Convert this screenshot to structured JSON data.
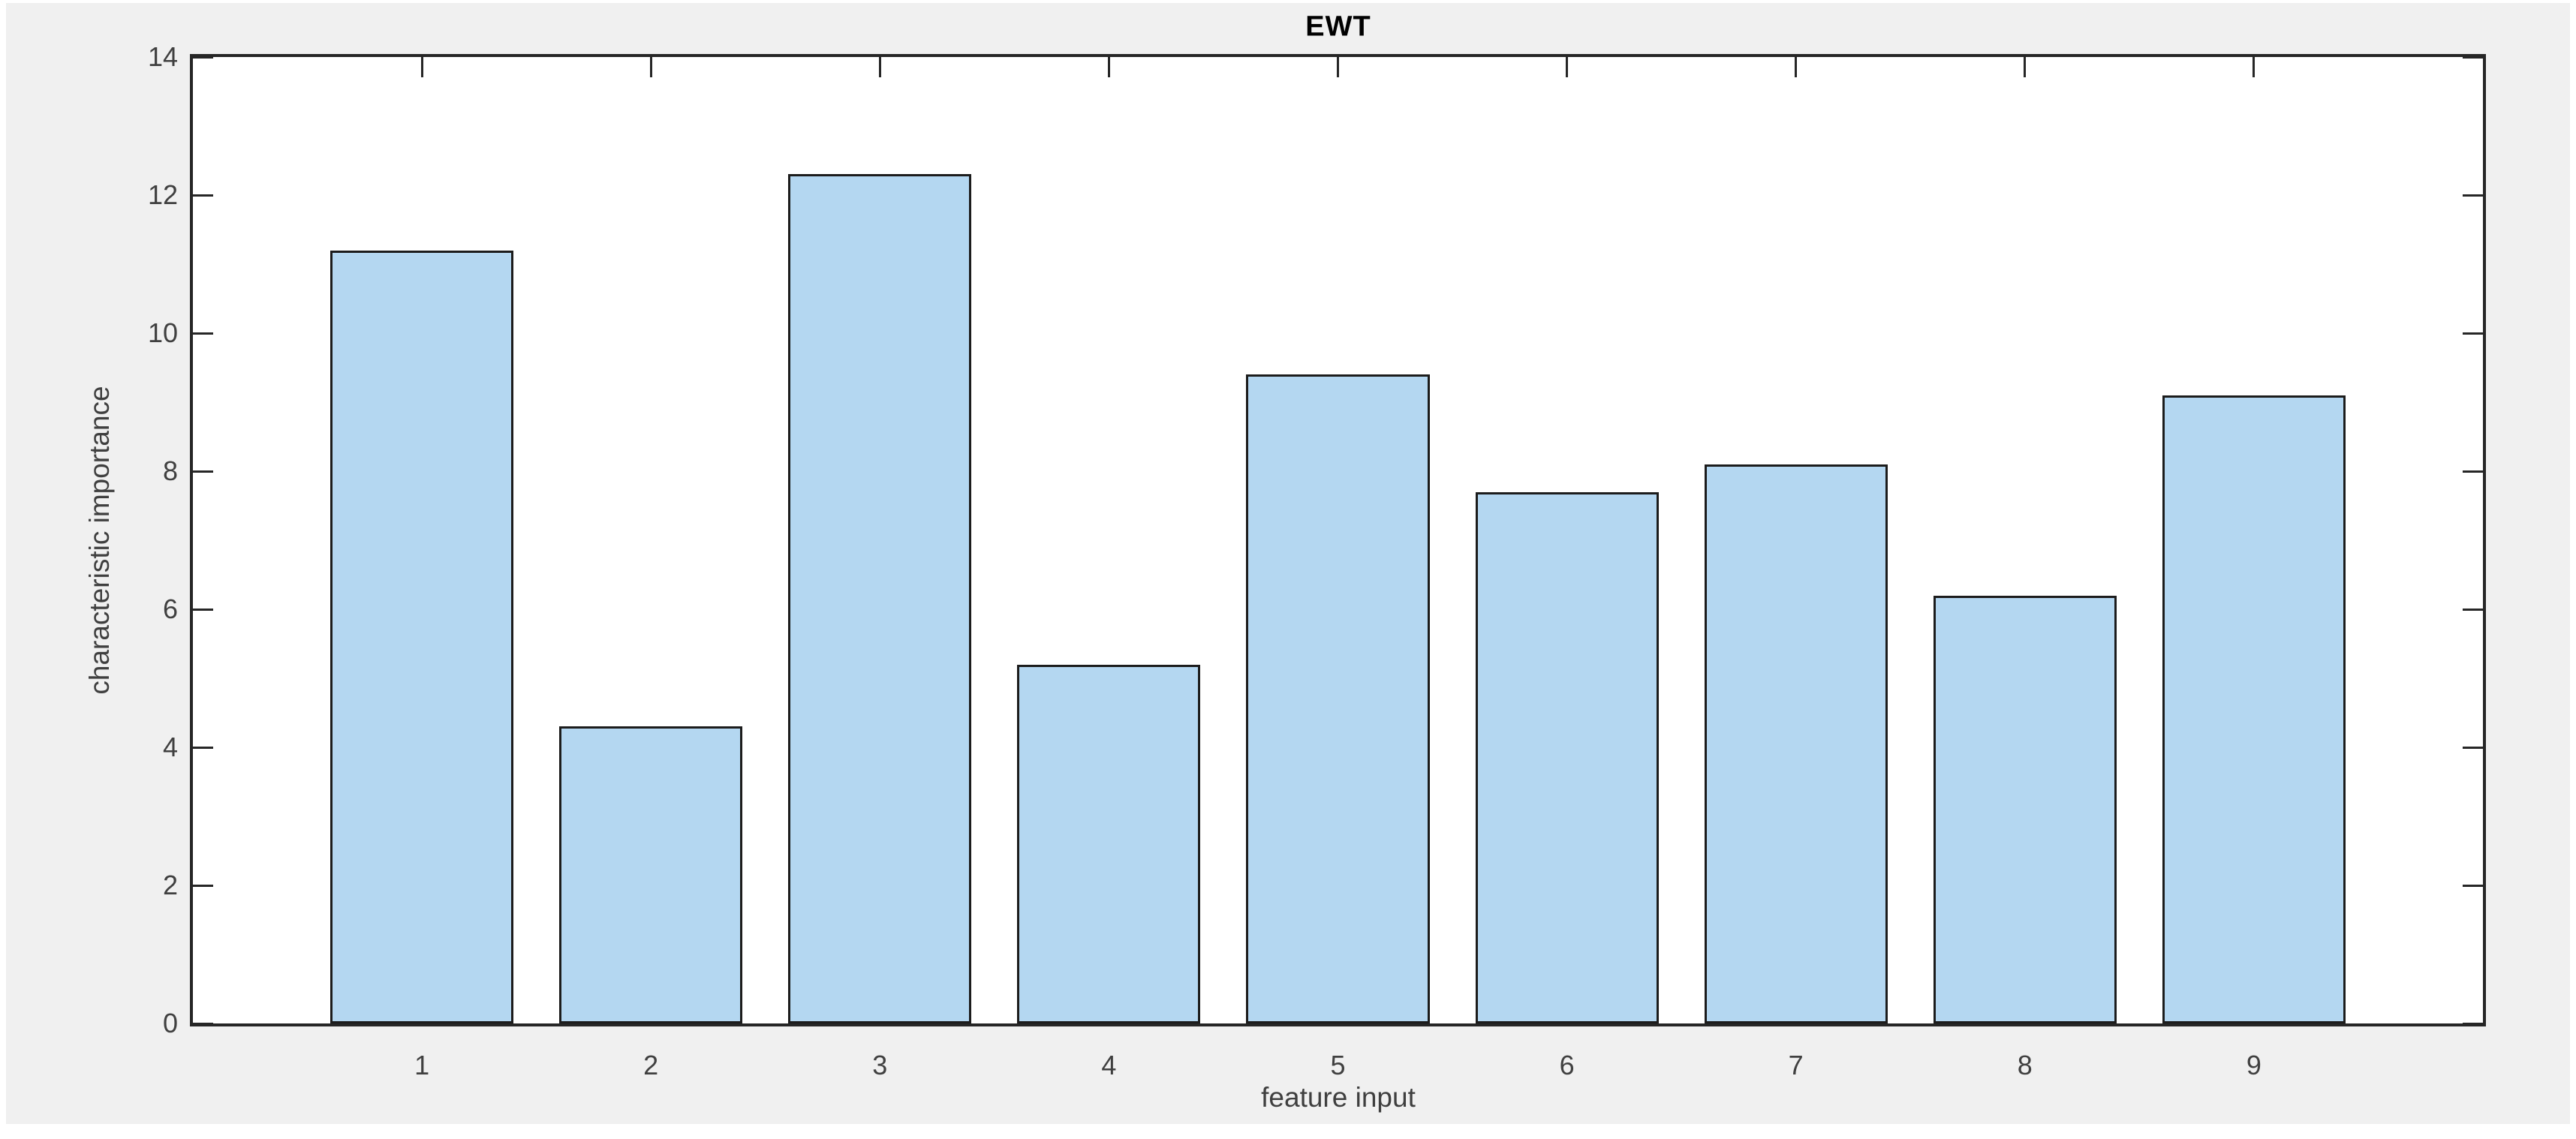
{
  "chart_data": {
    "type": "bar",
    "title": "EWT",
    "xlabel": "feature input",
    "ylabel": "characteristic importance",
    "categories": [
      "1",
      "2",
      "3",
      "4",
      "5",
      "6",
      "7",
      "8",
      "9"
    ],
    "values": [
      11.2,
      4.3,
      12.3,
      5.2,
      9.4,
      7.7,
      8.1,
      6.2,
      9.1
    ],
    "xlim": [
      0,
      10
    ],
    "ylim": [
      0,
      14
    ],
    "yticks": [
      0,
      2,
      4,
      6,
      8,
      10,
      12,
      14
    ],
    "bar_width": 0.8,
    "grid": false,
    "box": true,
    "tick_direction": "in",
    "legend_position": "none",
    "colors": {
      "bar_fill": "#b4d7f1",
      "bar_edge": "#1c1c1c",
      "axis": "#262626",
      "tick_label": "#404040",
      "axis_label": "#3f3f3f",
      "title": "#000000",
      "figure_bg": "#f0f0f0",
      "plot_bg": "#ffffff"
    }
  }
}
